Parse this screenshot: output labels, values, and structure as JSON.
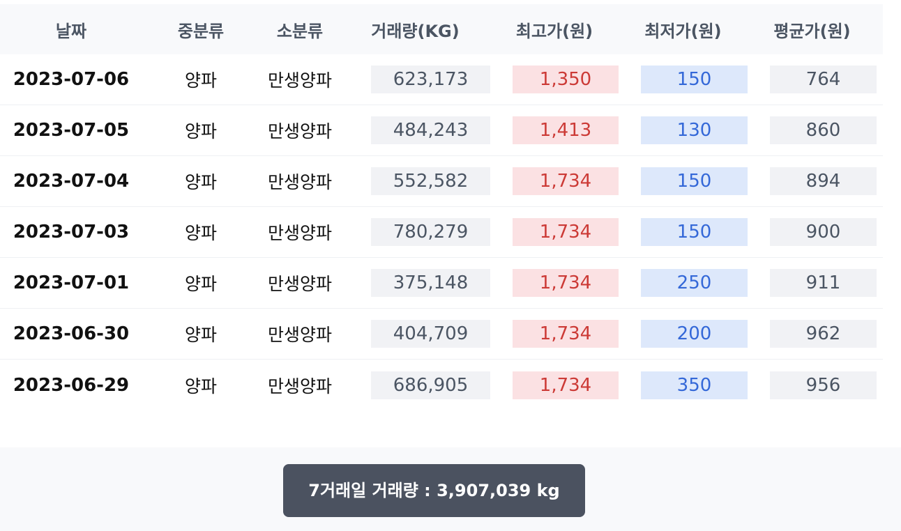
{
  "table": {
    "headers": {
      "date": "날짜",
      "mid_category": "중분류",
      "sub_category": "소분류",
      "volume": "거래량(KG)",
      "high": "최고가(원)",
      "low": "최저가(원)",
      "avg": "평균가(원)"
    },
    "rows": [
      {
        "date": "2023-07-06",
        "mid": "양파",
        "sub": "만생양파",
        "volume": "623,173",
        "high": "1,350",
        "low": "150",
        "avg": "764"
      },
      {
        "date": "2023-07-05",
        "mid": "양파",
        "sub": "만생양파",
        "volume": "484,243",
        "high": "1,413",
        "low": "130",
        "avg": "860"
      },
      {
        "date": "2023-07-04",
        "mid": "양파",
        "sub": "만생양파",
        "volume": "552,582",
        "high": "1,734",
        "low": "150",
        "avg": "894"
      },
      {
        "date": "2023-07-03",
        "mid": "양파",
        "sub": "만생양파",
        "volume": "780,279",
        "high": "1,734",
        "low": "150",
        "avg": "900"
      },
      {
        "date": "2023-07-01",
        "mid": "양파",
        "sub": "만생양파",
        "volume": "375,148",
        "high": "1,734",
        "low": "250",
        "avg": "911"
      },
      {
        "date": "2023-06-30",
        "mid": "양파",
        "sub": "만생양파",
        "volume": "404,709",
        "high": "1,734",
        "low": "200",
        "avg": "962"
      },
      {
        "date": "2023-06-29",
        "mid": "양파",
        "sub": "만생양파",
        "volume": "686,905",
        "high": "1,734",
        "low": "350",
        "avg": "956"
      }
    ]
  },
  "footer": {
    "summary_label": "7거래일 거래량 : 3,907,039 kg"
  },
  "colors": {
    "high_text": "#cc3a36",
    "high_bg": "#fbe1e3",
    "low_text": "#3468d8",
    "low_bg": "#dde8fb",
    "neutral_bg": "#f1f2f5",
    "button_bg": "#4b5260"
  }
}
